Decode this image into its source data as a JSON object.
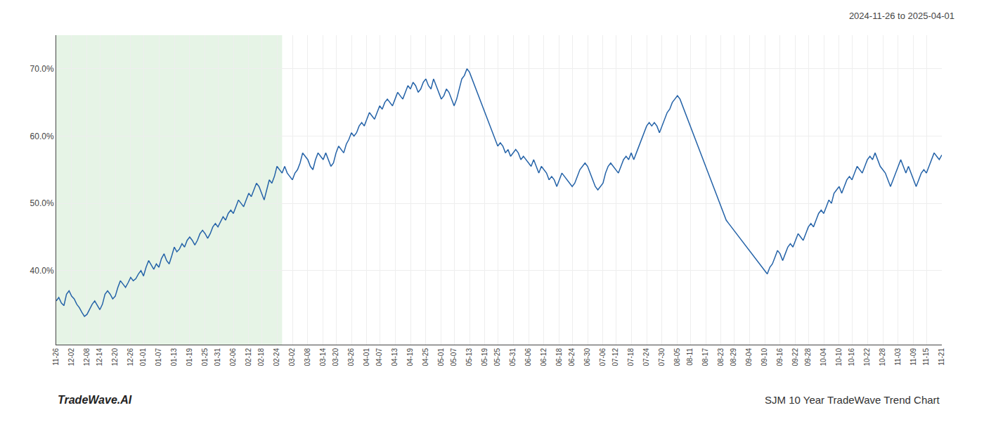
{
  "chart_data": {
    "type": "line",
    "title": "2024-11-26 to 2025-04-01",
    "annotations": [
      "TradeWave.AI",
      "SJM 10 Year TradeWave Trend Chart"
    ],
    "color": "#2563a8",
    "grid": true,
    "ylim": [
      29,
      75
    ],
    "yticks": [
      {
        "value": 40.0,
        "label": "40.0%"
      },
      {
        "value": 50.0,
        "label": "50.0%"
      },
      {
        "value": 60.0,
        "label": "60.0%"
      },
      {
        "value": 70.0,
        "label": "70.0%"
      }
    ],
    "highlight": {
      "start": 0,
      "end": 88,
      "color": "#c8e6c8"
    },
    "categories": [
      "11-26",
      null,
      null,
      null,
      null,
      null,
      "12-02",
      null,
      null,
      null,
      null,
      null,
      "12-08",
      null,
      null,
      null,
      null,
      "12-14",
      null,
      null,
      null,
      null,
      null,
      "12-20",
      null,
      null,
      null,
      null,
      null,
      "12-26",
      null,
      null,
      null,
      null,
      "01-01",
      null,
      null,
      null,
      null,
      null,
      "01-07",
      null,
      null,
      null,
      null,
      null,
      "01-13",
      null,
      null,
      null,
      null,
      null,
      "01-19",
      null,
      null,
      null,
      null,
      null,
      "01-25",
      null,
      null,
      null,
      null,
      "01-31",
      null,
      null,
      null,
      null,
      null,
      "02-06",
      null,
      null,
      null,
      null,
      null,
      "02-12",
      null,
      null,
      null,
      null,
      "02-18",
      null,
      null,
      null,
      null,
      null,
      "02-24",
      null,
      null,
      null,
      null,
      null,
      "03-02",
      null,
      null,
      null,
      null,
      null,
      "03-08",
      null,
      null,
      null,
      null,
      null,
      "03-14",
      null,
      null,
      null,
      null,
      "03-20",
      null,
      null,
      null,
      null,
      null,
      "03-26",
      null,
      null,
      null,
      null,
      null,
      "04-01",
      null,
      null,
      null,
      null,
      "04-07",
      null,
      null,
      null,
      null,
      null,
      "04-13",
      null,
      null,
      null,
      null,
      null,
      "04-19",
      null,
      null,
      null,
      null,
      null,
      "04-25",
      null,
      null,
      null,
      null,
      null,
      "05-01",
      null,
      null,
      null,
      null,
      "05-07",
      null,
      null,
      null,
      null,
      null,
      "05-13",
      null,
      null,
      null,
      null,
      null,
      "05-19",
      null,
      null,
      null,
      null,
      "05-25",
      null,
      null,
      null,
      null,
      null,
      "05-31",
      null,
      null,
      null,
      null,
      null,
      "06-06",
      null,
      null,
      null,
      null,
      null,
      "06-12",
      null,
      null,
      null,
      null,
      null,
      "06-18",
      null,
      null,
      null,
      null,
      "06-24",
      null,
      null,
      null,
      null,
      null,
      "06-30",
      null,
      null,
      null,
      null,
      null,
      "07-06",
      null,
      null,
      null,
      null,
      "07-12",
      null,
      null,
      null,
      null,
      null,
      "07-18",
      null,
      null,
      null,
      null,
      null,
      "07-24",
      null,
      null,
      null,
      null,
      null,
      "07-30",
      null,
      null,
      null,
      null,
      null,
      "08-05",
      null,
      null,
      null,
      null,
      "08-11",
      null,
      null,
      null,
      null,
      null,
      "08-17",
      null,
      null,
      null,
      null,
      null,
      "08-23",
      null,
      null,
      null,
      null,
      "08-29",
      null,
      null,
      null,
      null,
      null,
      "09-04",
      null,
      null,
      null,
      null,
      null,
      "09-10",
      null,
      null,
      null,
      null,
      null,
      "09-16",
      null,
      null,
      null,
      null,
      null,
      "09-22",
      null,
      null,
      null,
      null,
      "09-28",
      null,
      null,
      null,
      null,
      null,
      "10-04",
      null,
      null,
      null,
      null,
      null,
      "10-10",
      null,
      null,
      null,
      null,
      "10-16",
      null,
      null,
      null,
      null,
      null,
      "10-22",
      null,
      null,
      null,
      null,
      null,
      "10-28",
      null,
      null,
      null,
      null,
      null,
      "11-03",
      null,
      null,
      null,
      null,
      null,
      "11-09",
      null,
      null,
      null,
      null,
      "11-15",
      null,
      null,
      null,
      null,
      null,
      "11-21"
    ],
    "values": [
      35.5,
      36.0,
      35.2,
      34.8,
      36.5,
      37.0,
      36.2,
      35.8,
      35.0,
      34.5,
      33.8,
      33.2,
      33.5,
      34.2,
      35.0,
      35.5,
      34.8,
      34.2,
      35.0,
      36.5,
      37.0,
      36.5,
      35.8,
      36.2,
      37.5,
      38.5,
      38.0,
      37.5,
      38.2,
      39.0,
      38.5,
      38.8,
      39.5,
      40.0,
      39.2,
      40.5,
      41.5,
      40.8,
      40.2,
      41.0,
      40.5,
      41.8,
      42.5,
      41.5,
      41.0,
      42.2,
      43.5,
      42.8,
      43.2,
      44.0,
      43.5,
      44.5,
      45.0,
      44.5,
      43.8,
      44.5,
      45.5,
      46.0,
      45.5,
      44.8,
      45.5,
      46.5,
      47.0,
      46.5,
      47.2,
      48.0,
      47.5,
      48.5,
      49.0,
      48.5,
      49.5,
      50.5,
      50.0,
      49.5,
      50.5,
      51.5,
      51.0,
      52.0,
      53.0,
      52.5,
      51.5,
      50.5,
      52.0,
      53.5,
      53.0,
      54.0,
      55.5,
      55.0,
      54.5,
      55.5,
      54.5,
      54.0,
      53.5,
      54.5,
      55.0,
      56.0,
      57.5,
      57.0,
      56.5,
      55.5,
      55.0,
      56.5,
      57.5,
      57.0,
      56.5,
      57.5,
      56.5,
      55.5,
      56.0,
      57.5,
      58.5,
      58.0,
      57.5,
      58.8,
      59.5,
      60.5,
      60.0,
      60.5,
      61.5,
      62.0,
      61.5,
      62.5,
      63.5,
      63.0,
      62.5,
      63.5,
      64.5,
      64.0,
      65.0,
      65.5,
      65.0,
      64.5,
      65.5,
      66.5,
      66.0,
      65.5,
      66.5,
      67.5,
      67.0,
      68.0,
      67.5,
      66.5,
      67.0,
      68.0,
      68.5,
      67.5,
      67.0,
      68.5,
      67.5,
      66.5,
      65.5,
      66.0,
      67.0,
      66.5,
      65.5,
      64.5,
      65.5,
      67.0,
      68.5,
      69.0,
      70.0,
      69.5,
      68.5,
      67.5,
      66.5,
      65.5,
      64.5,
      63.5,
      62.5,
      61.5,
      60.5,
      59.5,
      58.5,
      59.0,
      58.5,
      57.5,
      58.0,
      57.0,
      57.5,
      58.0,
      57.5,
      56.5,
      57.0,
      56.5,
      56.0,
      55.5,
      56.5,
      55.5,
      54.5,
      55.5,
      55.0,
      54.5,
      53.5,
      54.0,
      53.5,
      52.5,
      53.5,
      54.5,
      54.0,
      53.5,
      53.0,
      52.5,
      53.0,
      54.0,
      55.0,
      55.5,
      56.0,
      55.5,
      54.5,
      53.5,
      52.5,
      52.0,
      52.5,
      53.0,
      54.5,
      55.5,
      56.0,
      55.5,
      55.0,
      54.5,
      55.5,
      56.5,
      57.0,
      56.5,
      57.5,
      56.5,
      57.5,
      58.5,
      59.5,
      60.5,
      61.5,
      62.0,
      61.5,
      62.0,
      61.5,
      60.5,
      61.5,
      62.5,
      63.5,
      64.0,
      65.0,
      65.5,
      66.0,
      65.5,
      64.5,
      63.5,
      62.5,
      61.5,
      60.5,
      59.5,
      58.5,
      57.5,
      56.5,
      55.5,
      54.5,
      53.5,
      52.5,
      51.5,
      50.5,
      49.5,
      48.5,
      47.5,
      47.0,
      46.5,
      46.0,
      45.5,
      45.0,
      44.5,
      44.0,
      43.5,
      43.0,
      42.5,
      42.0,
      41.5,
      41.0,
      40.5,
      40.0,
      39.5,
      40.5,
      41.0,
      42.0,
      43.0,
      42.5,
      41.5,
      42.5,
      43.5,
      44.0,
      43.5,
      44.5,
      45.5,
      45.0,
      44.5,
      45.5,
      46.5,
      47.0,
      46.5,
      47.5,
      48.5,
      49.0,
      48.5,
      49.5,
      50.5,
      50.0,
      51.5,
      52.0,
      52.5,
      51.5,
      52.5,
      53.5,
      54.0,
      53.5,
      54.5,
      55.5,
      55.0,
      54.5,
      55.5,
      56.5,
      57.0,
      56.5,
      57.5,
      56.5,
      55.5,
      55.0,
      54.5,
      53.5,
      52.5,
      53.5,
      54.5,
      55.5,
      56.5,
      55.5,
      54.5,
      55.5,
      54.5,
      53.5,
      52.5,
      53.5,
      54.5,
      55.0,
      54.5,
      55.5,
      56.5,
      57.5,
      57.0,
      56.5,
      57.2
    ]
  }
}
